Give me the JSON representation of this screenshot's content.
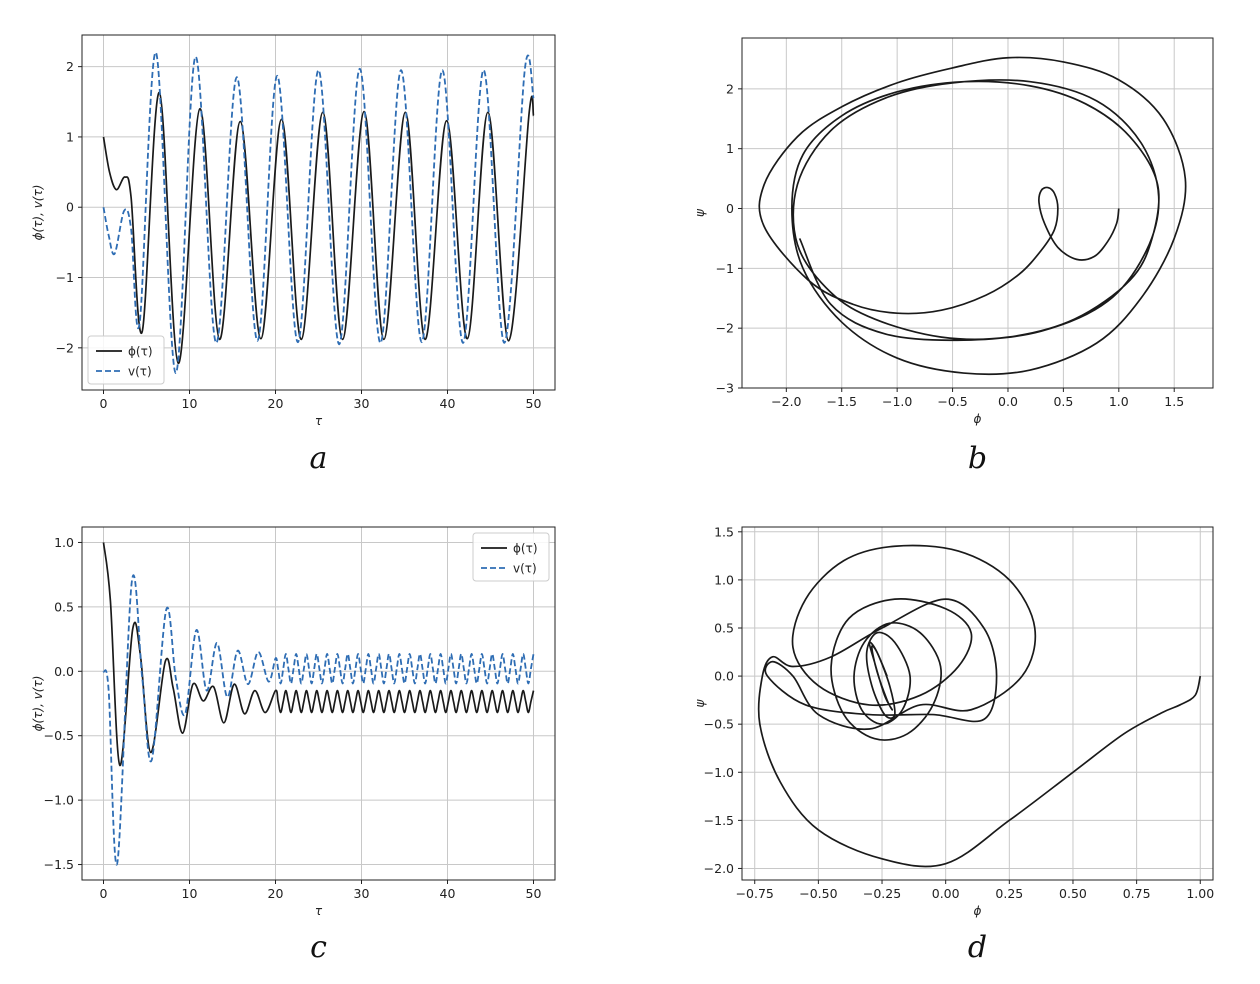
{
  "colors": {
    "phi": "#1a1a1a",
    "v": "#2e6db4",
    "grid": "#c8c8c8",
    "axes": "#222222"
  },
  "chart_data": [
    {
      "id": "a",
      "type": "line",
      "panel_label": "a",
      "xlabel": "τ",
      "ylabel": "ϕ(τ), v(τ)",
      "xlim": [
        -2.5,
        52.5
      ],
      "ylim": [
        -2.6,
        2.45
      ],
      "xticks": [
        0,
        10,
        20,
        30,
        40,
        50
      ],
      "xtick_labels": [
        "0",
        "10",
        "20",
        "30",
        "40",
        "50"
      ],
      "yticks": [
        -2,
        -1,
        0,
        1,
        2
      ],
      "ytick_labels": [
        "−2",
        "−1",
        "0",
        "1",
        "2"
      ],
      "grid": true,
      "legend": "lower-left",
      "series": [
        {
          "name": "ϕ(τ)",
          "style": "solid",
          "x": [
            0,
            0.7,
            1.5,
            2.5,
            3.2,
            4.5,
            6.5,
            8.7,
            11.2,
            13.5,
            15.9,
            18.3,
            20.7,
            23.0,
            25.5,
            27.8,
            30.3,
            32.6,
            35.1,
            37.4,
            39.9,
            42.3,
            44.7,
            47.1,
            49.5,
            50
          ],
          "y": [
            1.0,
            0.5,
            0.25,
            0.43,
            0.15,
            -1.77,
            1.63,
            -2.22,
            1.4,
            -1.88,
            1.22,
            -1.87,
            1.25,
            -1.88,
            1.35,
            -1.88,
            1.36,
            -1.88,
            1.35,
            -1.88,
            1.23,
            -1.87,
            1.35,
            -1.9,
            1.35,
            1.3
          ]
        },
        {
          "name": "v(τ)",
          "style": "dashed",
          "x": [
            0,
            0.6,
            1.3,
            2.4,
            3.2,
            4.2,
            6.1,
            8.4,
            10.7,
            13.1,
            15.5,
            17.9,
            20.2,
            22.6,
            25.0,
            27.4,
            29.8,
            32.2,
            34.6,
            37.0,
            39.4,
            41.8,
            44.2,
            46.6,
            49.0,
            50
          ],
          "y": [
            0.0,
            -0.4,
            -0.66,
            -0.05,
            -0.3,
            -1.65,
            2.2,
            -2.36,
            2.14,
            -1.93,
            1.85,
            -1.9,
            1.87,
            -1.92,
            1.95,
            -1.95,
            1.97,
            -1.93,
            1.95,
            -1.92,
            1.95,
            -1.93,
            1.95,
            -1.93,
            1.97,
            1.55
          ]
        }
      ]
    },
    {
      "id": "b",
      "type": "line",
      "panel_label": "b",
      "xlabel": "ϕ",
      "ylabel": "ψ",
      "xlim": [
        -2.4,
        1.85
      ],
      "ylim": [
        -3.0,
        2.85
      ],
      "xticks": [
        -2.0,
        -1.5,
        -1.0,
        -0.5,
        0.0,
        0.5,
        1.0,
        1.5
      ],
      "xtick_labels": [
        "−2.0",
        "−1.5",
        "−1.0",
        "−0.5",
        "0.0",
        "0.5",
        "1.0",
        "1.5"
      ],
      "yticks": [
        -3,
        -2,
        -1,
        0,
        1,
        2
      ],
      "ytick_labels": [
        "−3",
        "−2",
        "−1",
        "0",
        "1",
        "2"
      ],
      "grid": true,
      "series": [
        {
          "style": "solid",
          "x": [
            1.0,
            0.98,
            0.9,
            0.78,
            0.62,
            0.45,
            0.33,
            0.28,
            0.3,
            0.36,
            0.42,
            0.45,
            0.42,
            0.3,
            0.1,
            -0.2,
            -0.6,
            -1.0,
            -1.4,
            -1.8,
            -2.2,
            -2.2,
            -1.9,
            -1.5,
            -1.0,
            -0.5,
            0.0,
            0.5,
            1.0,
            1.4,
            1.6,
            1.5,
            1.2,
            0.8,
            0.2,
            -0.4,
            -1.0,
            -1.5,
            -1.85,
            -1.95,
            -1.85,
            -1.5,
            -1.0,
            -0.4,
            0.2,
            0.7,
            1.1,
            1.35,
            1.3,
            1.1,
            0.6,
            0.0,
            -0.6,
            -1.2,
            -1.6,
            -1.9,
            -1.9,
            -1.6,
            -1.1,
            -0.5,
            0.2,
            0.8,
            1.2,
            1.36,
            1.25,
            0.9,
            0.3,
            -0.4,
            -1.1,
            -1.6,
            -1.88
          ],
          "y": [
            0.0,
            -0.25,
            -0.55,
            -0.8,
            -0.85,
            -0.65,
            -0.25,
            0.1,
            0.3,
            0.35,
            0.25,
            0.0,
            -0.35,
            -0.7,
            -1.1,
            -1.45,
            -1.7,
            -1.75,
            -1.6,
            -1.2,
            -0.3,
            0.4,
            1.2,
            1.7,
            2.1,
            2.35,
            2.52,
            2.45,
            2.15,
            1.5,
            0.5,
            -0.5,
            -1.5,
            -2.25,
            -2.7,
            -2.75,
            -2.5,
            -1.9,
            -1.0,
            0.0,
            0.9,
            1.55,
            1.95,
            2.12,
            2.05,
            1.75,
            1.2,
            0.4,
            -0.5,
            -1.2,
            -1.85,
            -2.15,
            -2.15,
            -1.85,
            -1.4,
            -0.6,
            0.4,
            1.3,
            1.85,
            2.1,
            2.12,
            1.8,
            1.1,
            0.2,
            -0.7,
            -1.55,
            -2.05,
            -2.2,
            -2.1,
            -1.6,
            -0.5
          ]
        }
      ]
    },
    {
      "id": "c",
      "type": "line",
      "panel_label": "c",
      "xlabel": "τ",
      "ylabel": "ϕ(τ), v(τ)",
      "xlim": [
        -2.5,
        52.5
      ],
      "ylim": [
        -1.62,
        1.12
      ],
      "xticks": [
        0,
        10,
        20,
        30,
        40,
        50
      ],
      "xtick_labels": [
        "0",
        "10",
        "20",
        "30",
        "40",
        "50"
      ],
      "yticks": [
        -1.5,
        -1.0,
        -0.5,
        0.0,
        0.5,
        1.0
      ],
      "ytick_labels": [
        "−1.5",
        "−1.0",
        "−0.5",
        "0.0",
        "0.5",
        "1.0"
      ],
      "grid": true,
      "legend": "top-right",
      "series": [
        {
          "name": "ϕ(τ)",
          "style": "solid",
          "x": [
            0,
            0.8,
            1.9,
            3.4,
            4.3,
            5.5,
            7.2,
            8.1,
            9.2,
            10.4,
            11.6,
            12.8,
            14.0,
            15.2,
            16.4,
            17.6,
            18.8,
            20.0
          ],
          "y": [
            1.0,
            0.55,
            -0.73,
            0.33,
            0.12,
            -0.63,
            0.08,
            -0.13,
            -0.48,
            -0.1,
            -0.23,
            -0.12,
            -0.4,
            -0.1,
            -0.33,
            -0.15,
            -0.32,
            -0.15
          ]
        },
        {
          "name": "v(τ)",
          "style": "dashed",
          "x": [
            0,
            0.6,
            1.6,
            3.3,
            4.5,
            5.6,
            7.3,
            8.4,
            9.5,
            10.8,
            12.0,
            13.2,
            14.4,
            15.6,
            16.8,
            18.0,
            19.2,
            20.0
          ],
          "y": [
            0.0,
            -0.15,
            -1.49,
            0.7,
            -0.05,
            -0.69,
            0.48,
            -0.05,
            -0.33,
            0.32,
            -0.15,
            0.22,
            -0.2,
            0.16,
            -0.1,
            0.15,
            -0.08,
            0.1
          ]
        }
      ]
    },
    {
      "id": "d",
      "type": "line",
      "panel_label": "d",
      "xlabel": "ϕ",
      "ylabel": "ψ",
      "xlim": [
        -0.8,
        1.05
      ],
      "ylim": [
        -2.12,
        1.55
      ],
      "xticks": [
        -0.75,
        -0.5,
        -0.25,
        0.0,
        0.25,
        0.5,
        0.75,
        1.0
      ],
      "xtick_labels": [
        "−0.75",
        "−0.50",
        "−0.25",
        "0.00",
        "0.25",
        "0.50",
        "0.75",
        "1.00"
      ],
      "yticks": [
        -2.0,
        -1.5,
        -1.0,
        -0.5,
        0.0,
        0.5,
        1.0,
        1.5
      ],
      "ytick_labels": [
        "−2.0",
        "−1.5",
        "−1.0",
        "−0.5",
        "0.0",
        "0.5",
        "1.0",
        "1.5"
      ],
      "grid": true,
      "series": [
        {
          "style": "solid",
          "x": [
            1.0,
            0.98,
            0.92,
            0.85,
            0.7,
            0.5,
            0.25,
            0.0,
            -0.25,
            -0.5,
            -0.65,
            -0.73,
            -0.72,
            -0.68,
            -0.6,
            -0.45,
            -0.25,
            0.0,
            0.15,
            0.2,
            0.15,
            -0.05,
            -0.3,
            -0.55,
            -0.7,
            -0.68,
            -0.6,
            -0.5,
            -0.3,
            -0.1,
            0.1,
            0.3,
            0.35,
            0.25,
            0.05,
            -0.2,
            -0.4,
            -0.55,
            -0.6,
            -0.5,
            -0.3,
            -0.1,
            0.05,
            0.1,
            0.0,
            -0.2,
            -0.38,
            -0.45,
            -0.4,
            -0.28,
            -0.15,
            -0.05,
            -0.02,
            -0.1,
            -0.22,
            -0.32,
            -0.36,
            -0.33,
            -0.25,
            -0.17,
            -0.14,
            -0.2,
            -0.27,
            -0.31,
            -0.29,
            -0.24,
            -0.2,
            -0.22,
            -0.27,
            -0.3,
            -0.28,
            -0.24,
            -0.21,
            -0.23,
            -0.27,
            -0.29,
            -0.27,
            -0.23
          ],
          "y": [
            0.0,
            -0.2,
            -0.3,
            -0.38,
            -0.6,
            -1.0,
            -1.5,
            -1.95,
            -1.9,
            -1.6,
            -1.1,
            -0.5,
            0.0,
            0.2,
            0.1,
            0.2,
            0.5,
            0.8,
            0.5,
            0.0,
            -0.45,
            -0.4,
            -0.4,
            -0.3,
            0.0,
            0.15,
            0.0,
            -0.4,
            -0.55,
            -0.3,
            -0.35,
            0.0,
            0.5,
            1.0,
            1.3,
            1.35,
            1.2,
            0.8,
            0.3,
            -0.1,
            -0.3,
            -0.2,
            0.1,
            0.45,
            0.7,
            0.8,
            0.6,
            0.1,
            -0.4,
            -0.65,
            -0.6,
            -0.3,
            0.1,
            0.45,
            0.55,
            0.35,
            0.0,
            -0.35,
            -0.5,
            -0.35,
            0.0,
            0.35,
            0.45,
            0.25,
            -0.1,
            -0.4,
            -0.4,
            -0.1,
            0.25,
            0.35,
            0.15,
            -0.2,
            -0.35,
            -0.25,
            0.05,
            0.3,
            0.25,
            0.0
          ]
        }
      ]
    }
  ]
}
